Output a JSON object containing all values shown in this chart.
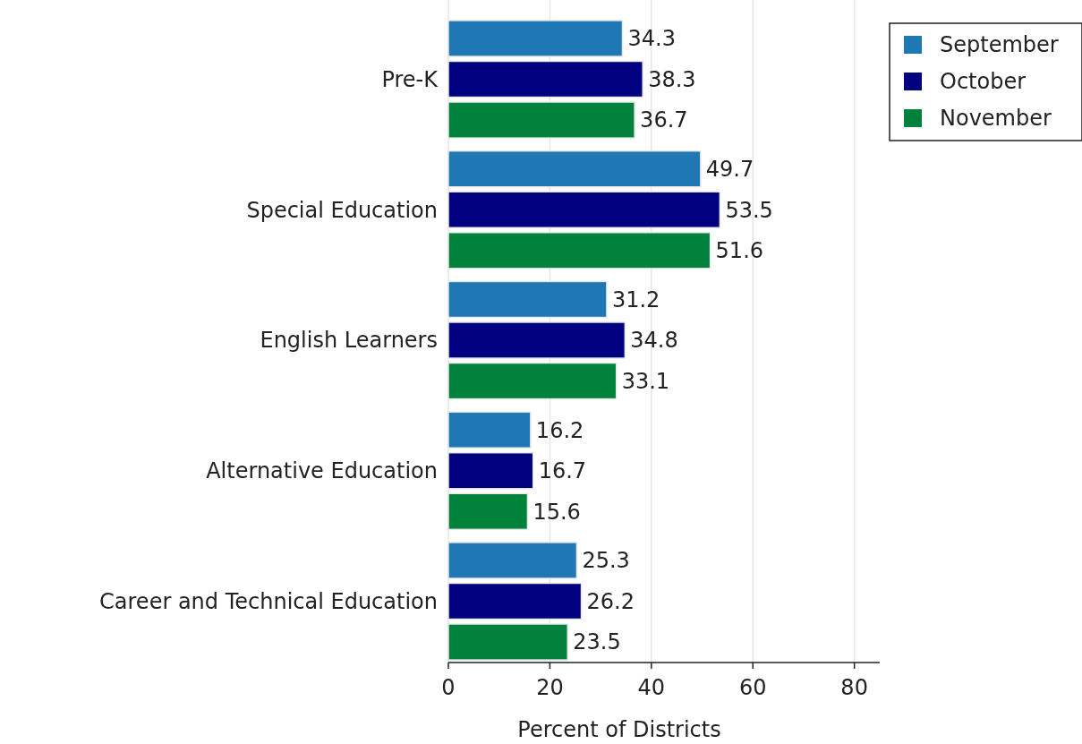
{
  "chart_data": {
    "type": "bar",
    "orientation": "horizontal",
    "xlabel": "Percent of Districts",
    "categories": [
      "Pre-K",
      "Special Education",
      "English Learners",
      "Alternative Education",
      "Career and Technical Education"
    ],
    "series": [
      {
        "name": "September",
        "color": "#1f77b4",
        "values": [
          34.3,
          49.7,
          31.2,
          16.2,
          25.3
        ]
      },
      {
        "name": "October",
        "color": "#000080",
        "values": [
          38.3,
          53.5,
          34.8,
          16.7,
          26.2
        ]
      },
      {
        "name": "November",
        "color": "#00823c",
        "values": [
          36.7,
          51.6,
          33.1,
          15.6,
          23.5
        ]
      }
    ],
    "xlim": [
      0,
      85
    ],
    "xticks": [
      0,
      20,
      40,
      60,
      80
    ],
    "grid": "x",
    "legend": "top right",
    "data_labels": true
  }
}
